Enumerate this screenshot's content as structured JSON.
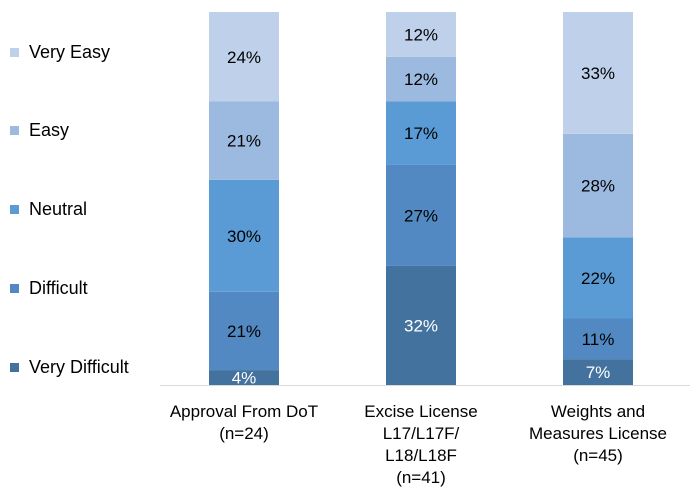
{
  "chart_data": {
    "type": "bar",
    "stacked": true,
    "normalized": true,
    "title": "",
    "xlabel": "",
    "ylabel": "",
    "ylim": [
      0,
      100
    ],
    "grid": false,
    "legend_position": "left",
    "categories": [
      [
        "Approval From DoT",
        "(n=24)"
      ],
      [
        "Excise License",
        "L17/L17F/",
        "L18/L18F",
        "(n=41)"
      ],
      [
        "Weights and",
        "Measures License",
        "(n=45)"
      ]
    ],
    "series": [
      {
        "name": "Very Difficult",
        "color": "#44729e",
        "values": [
          4,
          32,
          7
        ],
        "labels": [
          "4%",
          "32%",
          "7%"
        ],
        "label_color": "#ffffff"
      },
      {
        "name": "Difficult",
        "color": "#5289c2",
        "values": [
          21,
          27,
          11
        ],
        "labels": [
          "21%",
          "27%",
          "11%"
        ],
        "label_color": "#000000"
      },
      {
        "name": "Neutral",
        "color": "#5b9bd5",
        "values": [
          30,
          17,
          22
        ],
        "labels": [
          "30%",
          "17%",
          "22%"
        ],
        "label_color": "#000000"
      },
      {
        "name": "Easy",
        "color": "#9cb9e0",
        "values": [
          21,
          12,
          28
        ],
        "labels": [
          "21%",
          "12%",
          "28%"
        ],
        "label_color": "#000000"
      },
      {
        "name": "Very Easy",
        "color": "#bfd0ea",
        "values": [
          24,
          12,
          33
        ],
        "labels": [
          "24%",
          "12%",
          "33%"
        ],
        "label_color": "#000000"
      }
    ]
  }
}
